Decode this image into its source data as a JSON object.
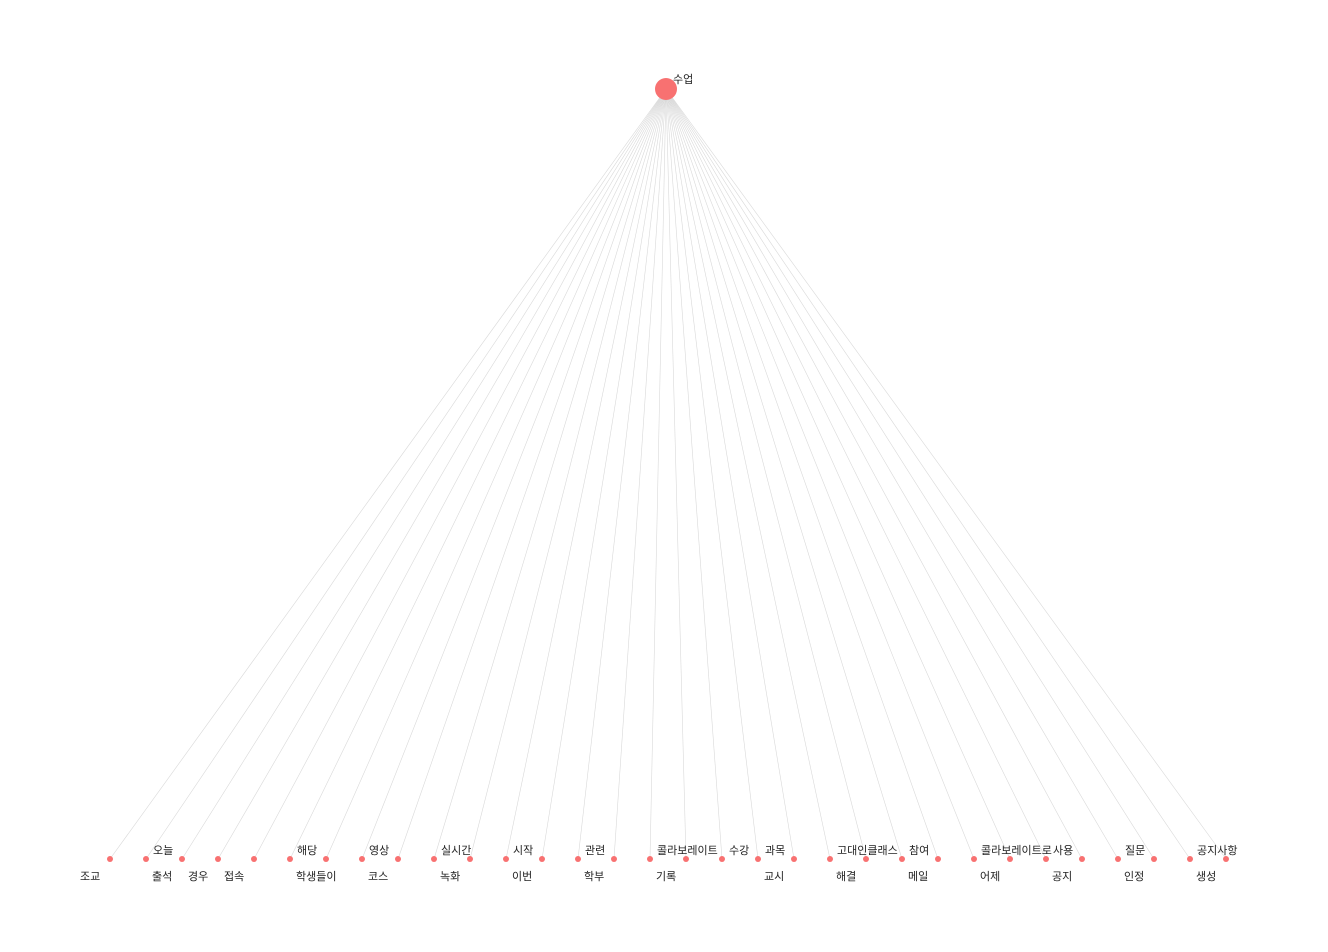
{
  "colors": {
    "node": "#f87171",
    "edge": "#d9d9d9",
    "label": "#222222"
  },
  "root": {
    "label": "수업"
  },
  "leaves": [
    {
      "label": "조교",
      "label_side": "below"
    },
    {
      "label": "오늘",
      "label_side": "above"
    },
    {
      "label": "출석",
      "label_side": "below"
    },
    {
      "label": "경우",
      "label_side": "below"
    },
    {
      "label": "접속",
      "label_side": "below"
    },
    {
      "label": "해당",
      "label_side": "above"
    },
    {
      "label": "학생들이",
      "label_side": "below"
    },
    {
      "label": "영상",
      "label_side": "above"
    },
    {
      "label": "코스",
      "label_side": "below"
    },
    {
      "label": "실시간",
      "label_side": "above"
    },
    {
      "label": "녹화",
      "label_side": "below"
    },
    {
      "label": "시작",
      "label_side": "above"
    },
    {
      "label": "이번",
      "label_side": "below"
    },
    {
      "label": "관련",
      "label_side": "above"
    },
    {
      "label": "학부",
      "label_side": "below"
    },
    {
      "label": "콜라보레이트",
      "label_side": "above"
    },
    {
      "label": "기록",
      "label_side": "below"
    },
    {
      "label": "수강",
      "label_side": "above"
    },
    {
      "label": "과목",
      "label_side": "above"
    },
    {
      "label": "교시",
      "label_side": "below"
    },
    {
      "label": "고대인클래스",
      "label_side": "above"
    },
    {
      "label": "해결",
      "label_side": "below"
    },
    {
      "label": "참여",
      "label_side": "above"
    },
    {
      "label": "메일",
      "label_side": "below"
    },
    {
      "label": "콜라보레이트로",
      "label_side": "above"
    },
    {
      "label": "어제",
      "label_side": "below"
    },
    {
      "label": "사용",
      "label_side": "above"
    },
    {
      "label": "공지",
      "label_side": "below"
    },
    {
      "label": "질문",
      "label_side": "above"
    },
    {
      "label": "인정",
      "label_side": "below"
    },
    {
      "label": "공지사항",
      "label_side": "above"
    },
    {
      "label": "생성",
      "label_side": "below"
    }
  ]
}
